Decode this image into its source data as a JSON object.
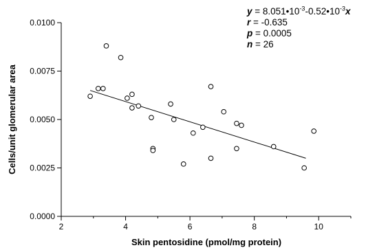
{
  "chart_data": {
    "type": "scatter",
    "xlabel": "Skin pentosidine (pmol/mg protein)",
    "ylabel": "Cells/unit glomerular area",
    "xlim": [
      2,
      11
    ],
    "ylim": [
      0.0,
      0.01
    ],
    "x_ticks": [
      2,
      4,
      6,
      8,
      10
    ],
    "x_tick_labels": [
      "2",
      "4",
      "6",
      "8",
      "10"
    ],
    "y_ticks": [
      0.0,
      0.0025,
      0.005,
      0.0075,
      0.01
    ],
    "y_tick_labels": [
      "0.0000",
      "0.0025",
      "0.0050",
      "0.0075",
      "0.0100"
    ],
    "grid": false,
    "points": [
      {
        "x": 2.9,
        "y": 0.0062
      },
      {
        "x": 3.15,
        "y": 0.0066
      },
      {
        "x": 3.3,
        "y": 0.0066
      },
      {
        "x": 3.4,
        "y": 0.0088
      },
      {
        "x": 3.85,
        "y": 0.0082
      },
      {
        "x": 4.05,
        "y": 0.0061
      },
      {
        "x": 4.2,
        "y": 0.0063
      },
      {
        "x": 4.2,
        "y": 0.0056
      },
      {
        "x": 4.4,
        "y": 0.0057
      },
      {
        "x": 4.8,
        "y": 0.0051
      },
      {
        "x": 4.85,
        "y": 0.0035
      },
      {
        "x": 4.85,
        "y": 0.0034
      },
      {
        "x": 5.4,
        "y": 0.0058
      },
      {
        "x": 5.5,
        "y": 0.005
      },
      {
        "x": 5.8,
        "y": 0.0027
      },
      {
        "x": 6.1,
        "y": 0.0043
      },
      {
        "x": 6.4,
        "y": 0.0046
      },
      {
        "x": 6.65,
        "y": 0.0067
      },
      {
        "x": 6.65,
        "y": 0.003
      },
      {
        "x": 7.05,
        "y": 0.0054
      },
      {
        "x": 7.45,
        "y": 0.0048
      },
      {
        "x": 7.45,
        "y": 0.0035
      },
      {
        "x": 7.6,
        "y": 0.0047
      },
      {
        "x": 8.6,
        "y": 0.0036
      },
      {
        "x": 9.55,
        "y": 0.0025
      },
      {
        "x": 9.85,
        "y": 0.0044
      }
    ],
    "fit_line": {
      "x": [
        2.9,
        9.6
      ],
      "y": [
        0.0065,
        0.003
      ]
    },
    "annotation": {
      "y_label": "y",
      "equation": " = 8.051•10",
      "exp1": "-3",
      "mid": "-0.52•10",
      "exp2": "-3",
      "x_label": "x",
      "r_label": "r",
      "r_value": " = -0.635",
      "p_label": "p",
      "p_value": " = 0.0005",
      "n_label": "n",
      "n_value": " = 26"
    }
  }
}
